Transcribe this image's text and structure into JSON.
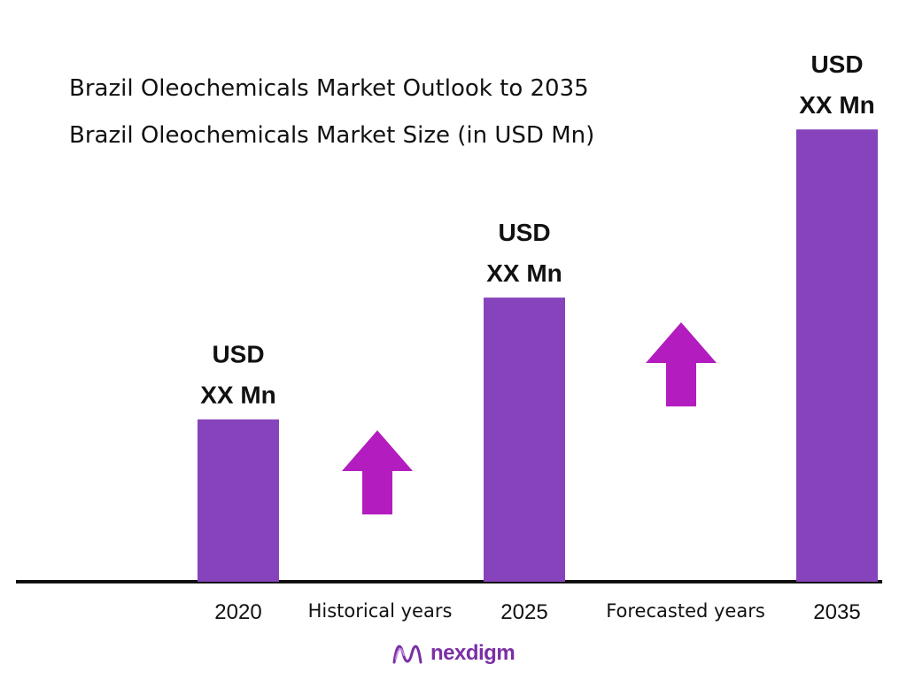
{
  "title": "Brazil Oleochemicals Market Outlook to 2035",
  "subtitle": "Brazil Oleochemicals Market Size (in USD Mn)",
  "chart_data": {
    "type": "bar",
    "title": "Brazil Oleochemicals Market Outlook to 2035",
    "subtitle": "Brazil Oleochemicals Market Size (in USD Mn)",
    "categories": [
      "2020",
      "2025",
      "2035"
    ],
    "values": [
      28,
      49,
      78
    ],
    "value_note": "Bar values are not printed; relative heights read from bar lengths on an unlabeled scale",
    "data_labels": [
      [
        "USD",
        "XX Mn"
      ],
      [
        "USD",
        "XX Mn"
      ],
      [
        "USD",
        "XX Mn"
      ]
    ],
    "period_labels": [
      "Historical years",
      "Forecasted years"
    ],
    "ylim": [
      0,
      82
    ],
    "grid": false,
    "legend": "none",
    "colors": {
      "bar": "#8643bb",
      "arrow": "#b31cbf",
      "axis": "#111111"
    }
  },
  "logo": {
    "text": "nexdigm",
    "icon": "nexdigm-wave-logo-icon",
    "color": "#7b2fa5"
  }
}
